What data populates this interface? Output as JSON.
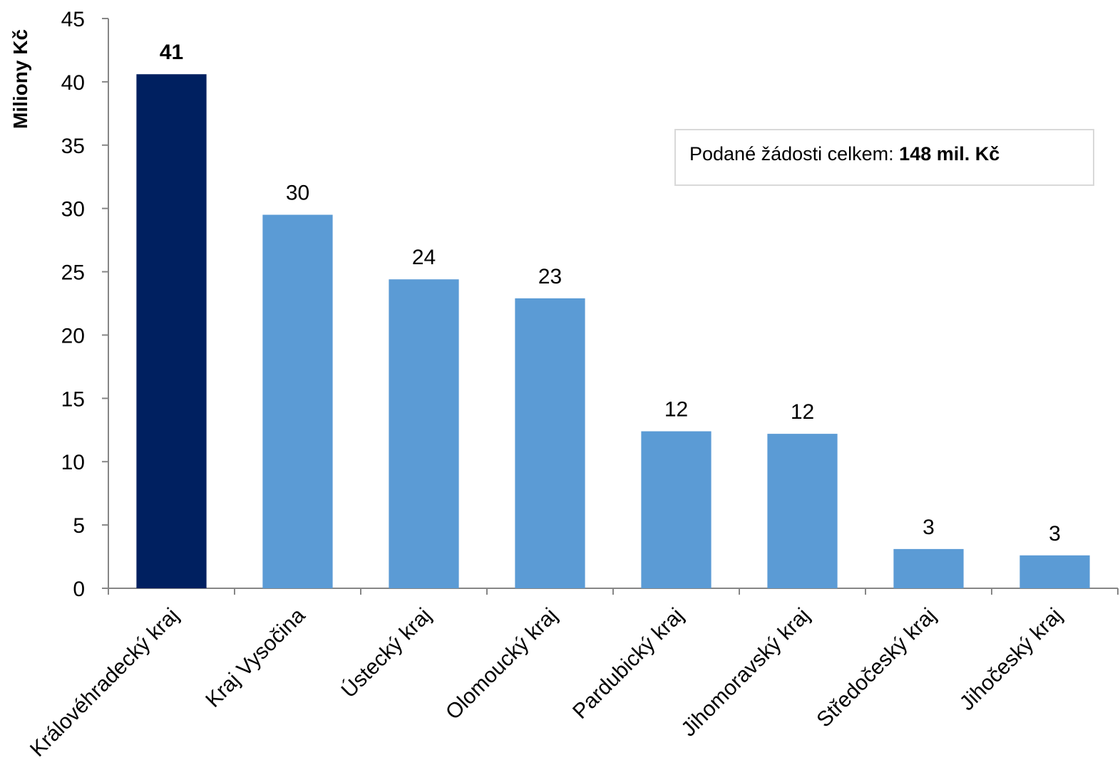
{
  "chart_data": {
    "type": "bar",
    "ylabel": "Miliony Kč",
    "ylim": [
      0,
      45
    ],
    "yticks": [
      0,
      5,
      10,
      15,
      20,
      25,
      30,
      35,
      40,
      45
    ],
    "categories": [
      "Královéhradecký kraj",
      "Kraj Vysočina",
      "Ústecký kraj",
      "Olomoucký kraj",
      "Pardubický kraj",
      "Jihomoravský kraj",
      "Středočeský kraj",
      "Jihočeský kraj"
    ],
    "values": [
      40.6,
      29.5,
      24.4,
      22.9,
      12.4,
      12.2,
      3.1,
      2.6
    ],
    "data_labels": [
      "41",
      "30",
      "24",
      "23",
      "12",
      "12",
      "3",
      "3"
    ],
    "highlight_index": 0,
    "colors": {
      "highlight": "#002060",
      "default": "#5b9bd5",
      "axis": "#868686"
    },
    "grid": false,
    "annotation": {
      "text": "Podané žádosti celkem: ",
      "bold": "148 mil. Kč"
    }
  }
}
